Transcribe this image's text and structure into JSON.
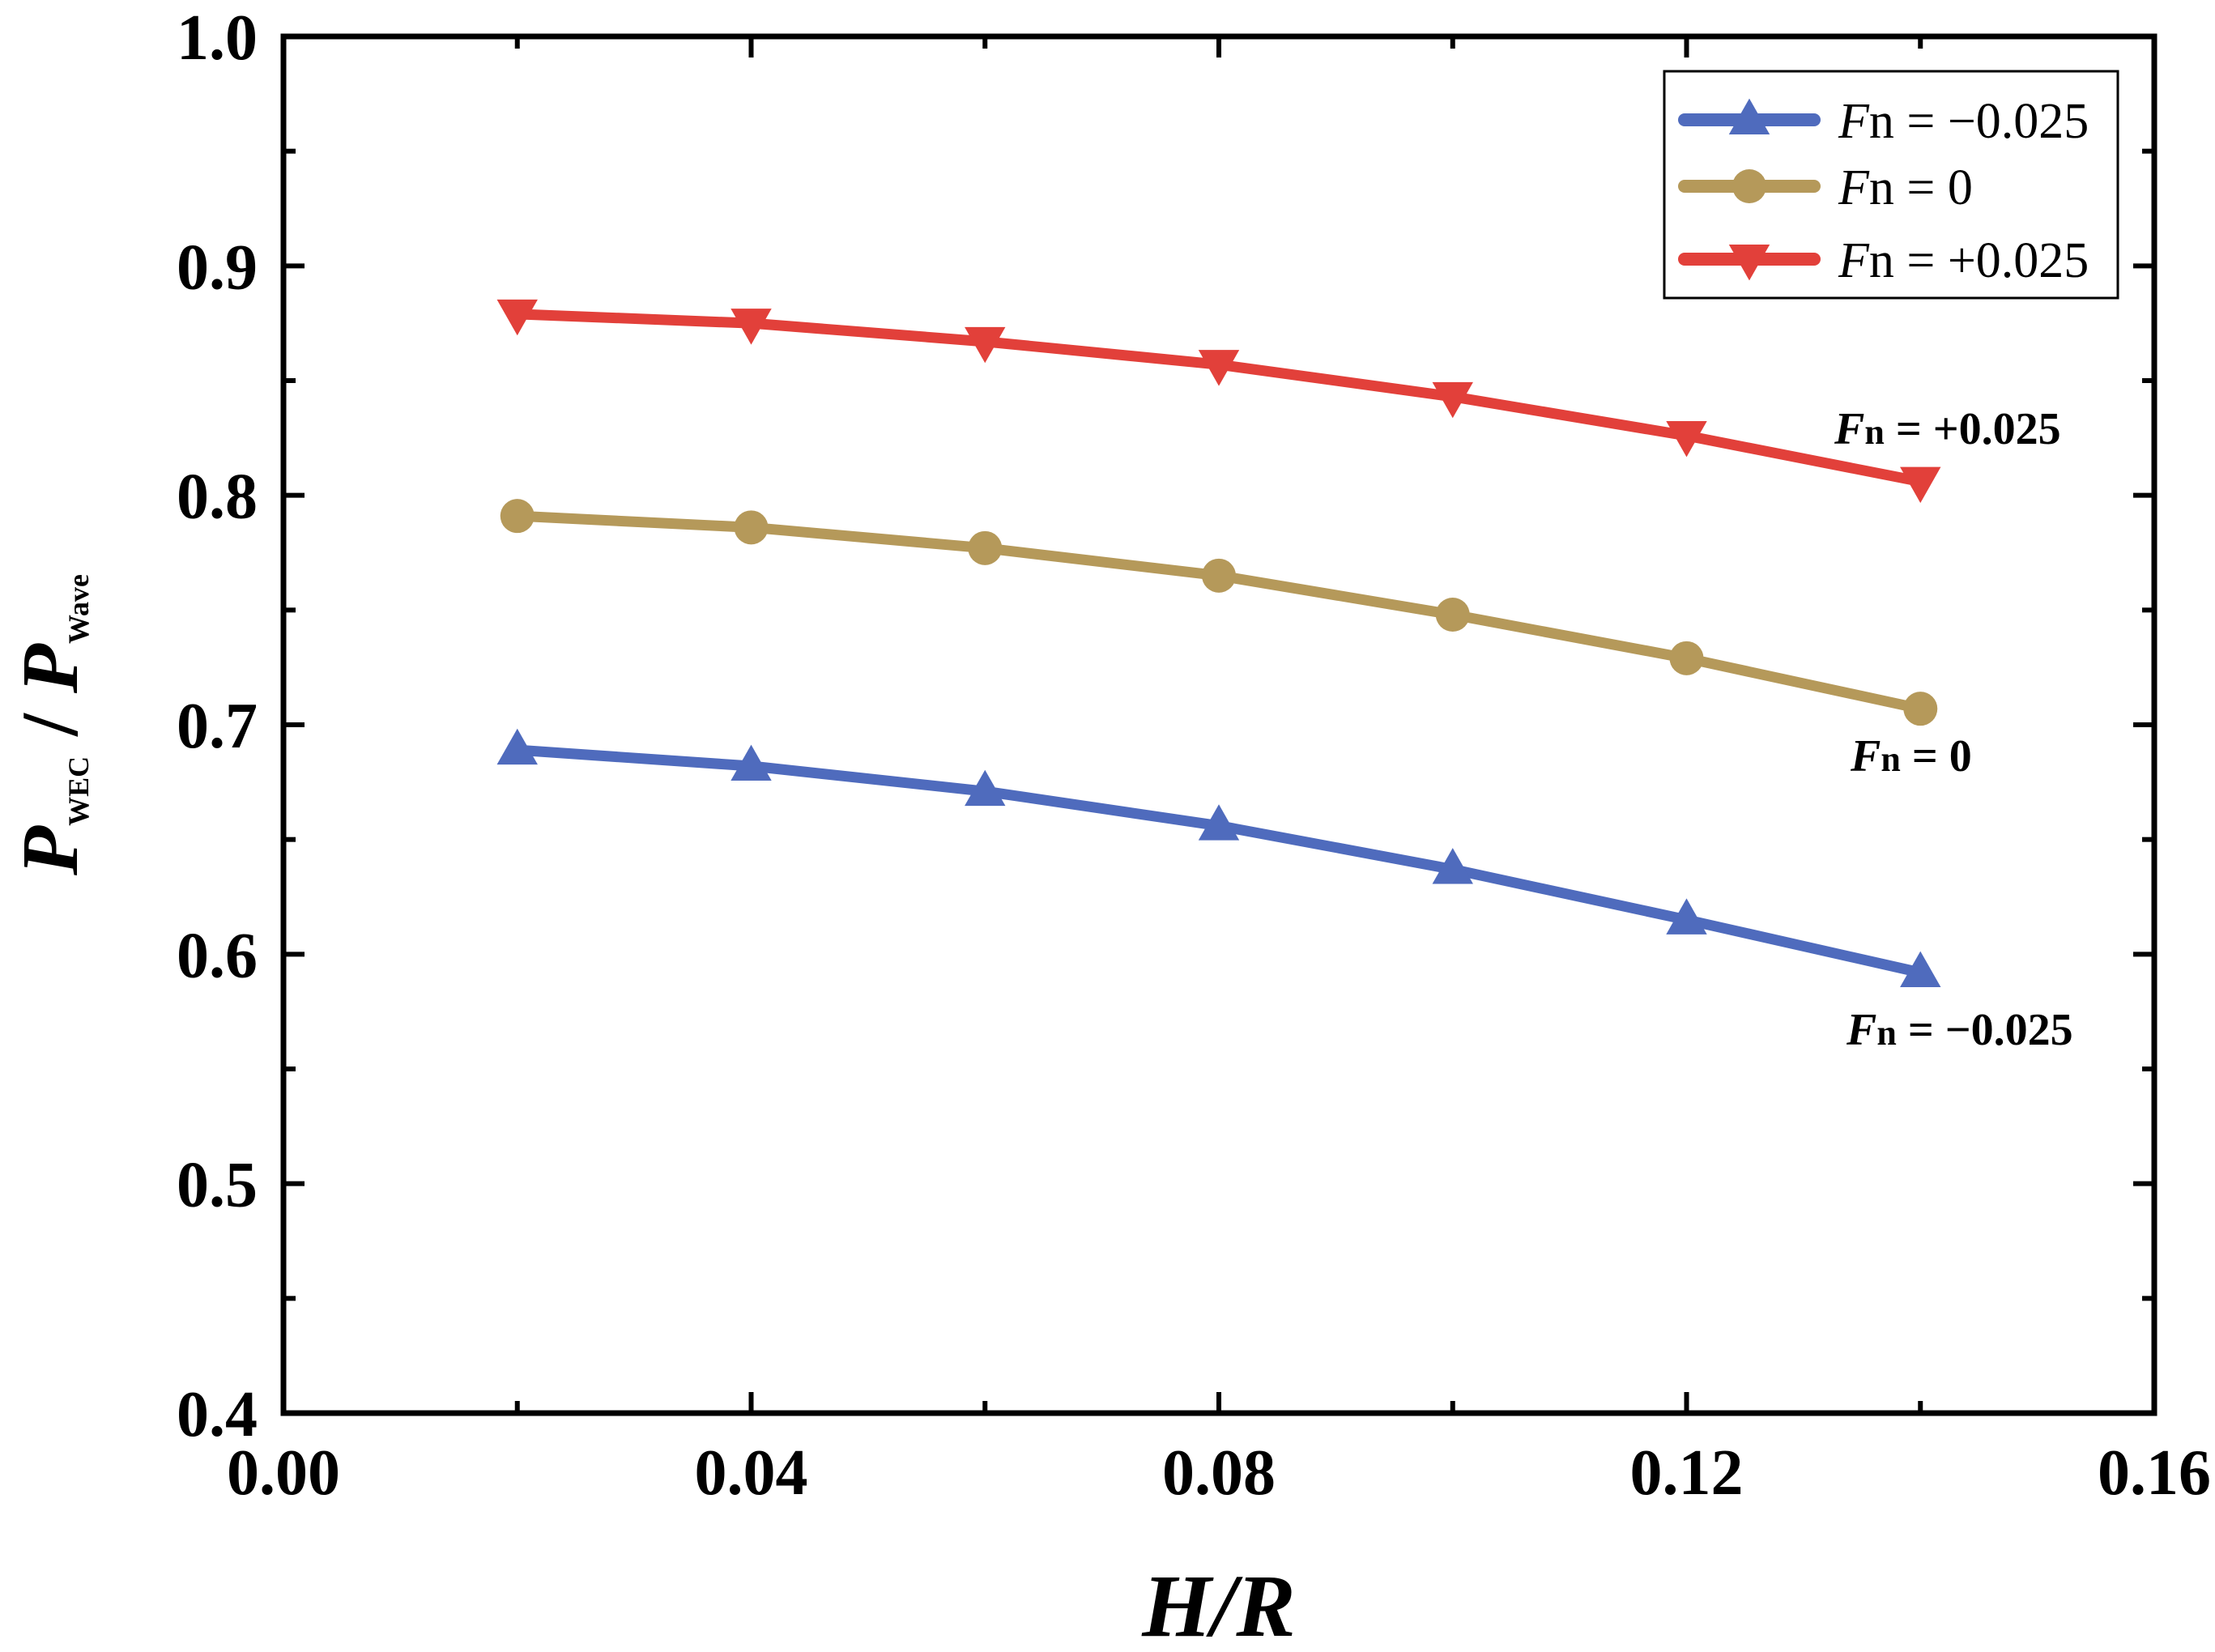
{
  "chart_data": {
    "type": "line",
    "title": "",
    "xlabel": "H/R",
    "ylabel": {
      "p1": "P",
      "sub1": "WEC",
      "sep": " / ",
      "p2": "P",
      "sub2": "Wave"
    },
    "xlim": [
      0.0,
      0.16
    ],
    "ylim": [
      0.4,
      1.0
    ],
    "x_ticks": [
      0.0,
      0.04,
      0.08,
      0.12,
      0.16
    ],
    "x_tick_labels": [
      "0.00",
      "0.04",
      "0.08",
      "0.12",
      "0.16"
    ],
    "y_ticks": [
      0.4,
      0.5,
      0.6,
      0.7,
      0.8,
      0.9,
      1.0
    ],
    "y_tick_labels": [
      "0.4",
      "0.5",
      "0.6",
      "0.7",
      "0.8",
      "0.9",
      "1.0"
    ],
    "grid": false,
    "legend_position": "top-right",
    "x": [
      0.02,
      0.04,
      0.06,
      0.08,
      0.1,
      0.12,
      0.14
    ],
    "series": [
      {
        "name": "Fn = −0.025",
        "legend_label": {
          "f": "F",
          "sub": "n",
          "rest": " = −0.025"
        },
        "color": "#4f6bbd",
        "marker": "triangle-up",
        "values": [
          0.689,
          0.682,
          0.671,
          0.656,
          0.637,
          0.615,
          0.592
        ],
        "annotation": {
          "f": "F",
          "sub": "n",
          "rest": " = −0.025"
        }
      },
      {
        "name": "Fn = 0",
        "legend_label": {
          "f": "F",
          "sub": "n",
          "rest": " = 0"
        },
        "color": "#b5995a",
        "marker": "circle",
        "values": [
          0.791,
          0.786,
          0.777,
          0.765,
          0.748,
          0.729,
          0.707
        ],
        "annotation": {
          "f": "F",
          "sub": "n",
          "rest": " = 0"
        }
      },
      {
        "name": "Fn = +0.025",
        "legend_label": {
          "f": "F",
          "sub": "n",
          "rest": " = +0.025"
        },
        "color": "#e2403a",
        "marker": "triangle-down",
        "values": [
          0.879,
          0.875,
          0.867,
          0.857,
          0.843,
          0.826,
          0.806
        ],
        "annotation": {
          "f": "F",
          "sub": "n",
          "rest": " = +0.025"
        }
      }
    ]
  }
}
